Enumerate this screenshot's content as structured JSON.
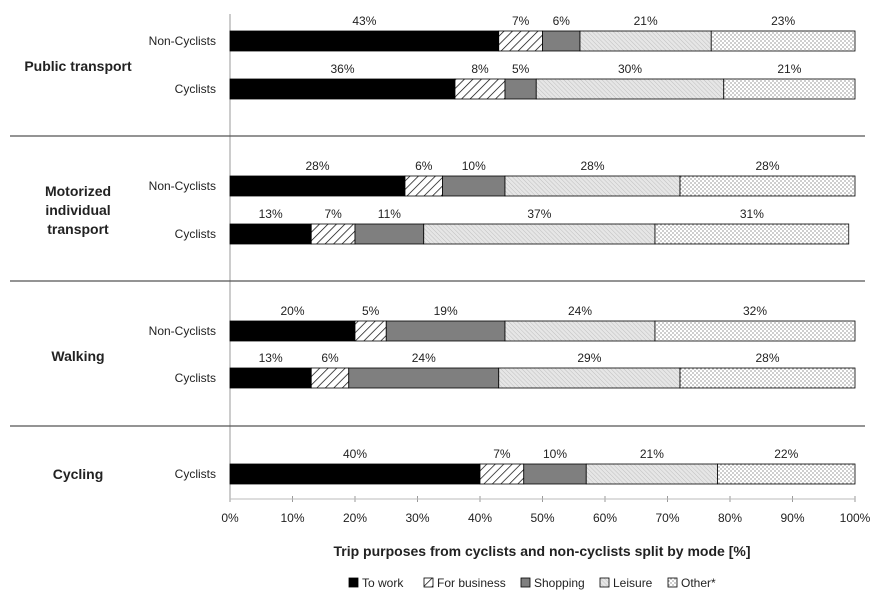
{
  "chart_data": {
    "type": "bar",
    "orientation": "horizontal",
    "stacked": true,
    "xlabel": "Trip purposes from cyclists and non-cyclists split by mode  [%]",
    "xlim": [
      0,
      100
    ],
    "x_ticks": [
      "0%",
      "10%",
      "20%",
      "30%",
      "40%",
      "50%",
      "60%",
      "70%",
      "80%",
      "90%",
      "100%"
    ],
    "legend_position": "bottom",
    "series": [
      {
        "name": "To work",
        "color": "#000000",
        "pattern": "solid"
      },
      {
        "name": "For business",
        "color": "#ffffff",
        "pattern": "diagonal-hatch"
      },
      {
        "name": "Shopping",
        "color": "#808080",
        "pattern": "solid"
      },
      {
        "name": "Leisure",
        "color": "#d9d9d9",
        "pattern": "fine-hatch"
      },
      {
        "name": "Other*",
        "color": "#ffffff",
        "pattern": "dots"
      }
    ],
    "groups": [
      {
        "label": "Public transport",
        "bars": [
          {
            "label": "Non-Cyclists",
            "values": [
              43,
              7,
              6,
              21,
              23
            ],
            "value_labels": [
              "43%",
              "7%",
              "6%",
              "21%",
              "23%"
            ]
          },
          {
            "label": "Cyclists",
            "values": [
              36,
              8,
              5,
              30,
              21
            ],
            "value_labels": [
              "36%",
              "8%",
              "5%",
              "30%",
              "21%"
            ]
          }
        ]
      },
      {
        "label": "Motorized individual transport",
        "label_lines": [
          "Motorized",
          "individual",
          "transport"
        ],
        "bars": [
          {
            "label": "Non-Cyclists",
            "values": [
              28,
              6,
              10,
              28,
              28
            ],
            "value_labels": [
              "28%",
              "6%",
              "10%",
              "28%",
              "28%"
            ]
          },
          {
            "label": "Cyclists",
            "values": [
              13,
              7,
              11,
              37,
              31
            ],
            "value_labels": [
              "13%",
              "7%",
              "11%",
              "37%",
              "31%"
            ]
          }
        ]
      },
      {
        "label": "Walking",
        "bars": [
          {
            "label": "Non-Cyclists",
            "values": [
              20,
              5,
              19,
              24,
              32
            ],
            "value_labels": [
              "20%",
              "5%",
              "19%",
              "24%",
              "32%"
            ]
          },
          {
            "label": "Cyclists",
            "values": [
              13,
              6,
              24,
              29,
              28
            ],
            "value_labels": [
              "13%",
              "6%",
              "24%",
              "29%",
              "28%"
            ]
          }
        ]
      },
      {
        "label": "Cycling",
        "bars": [
          {
            "label": "Cyclists",
            "values": [
              40,
              7,
              10,
              21,
              22
            ],
            "value_labels": [
              "40%",
              "7%",
              "10%",
              "21%",
              "22%"
            ]
          }
        ]
      }
    ]
  }
}
